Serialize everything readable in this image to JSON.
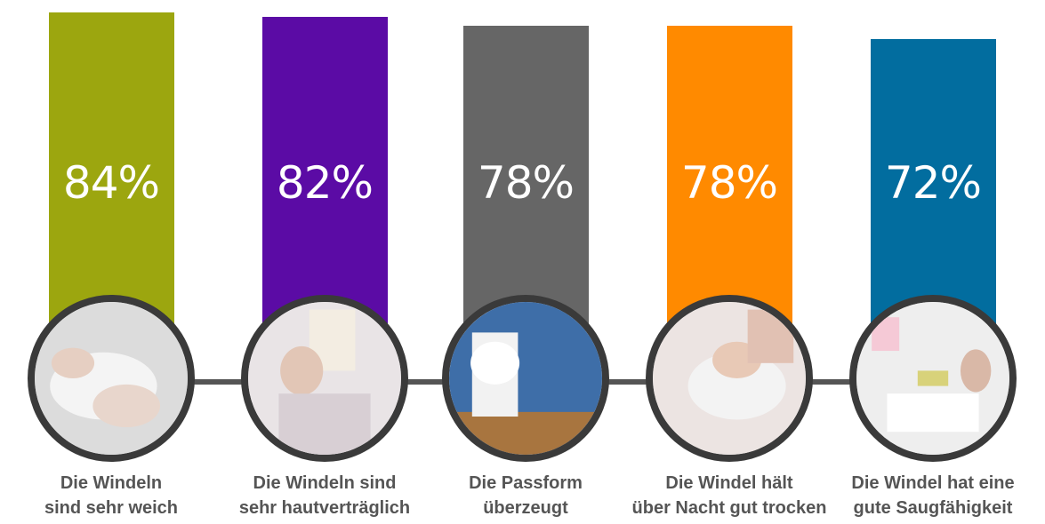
{
  "chart_data": {
    "type": "bar",
    "title": "",
    "xlabel": "",
    "ylabel": "",
    "ylim": [
      0,
      100
    ],
    "categories": [
      [
        "Die Windeln",
        "sind sehr weich"
      ],
      [
        "Die Windeln sind",
        "sehr hautverträglich"
      ],
      [
        "Die Passform",
        "überzeugt"
      ],
      [
        "Die Windel hält",
        "über Nacht gut trocken"
      ],
      [
        "Die Windel hat eine",
        "gute Saugfähigkeit"
      ]
    ],
    "values": [
      84,
      82,
      78,
      78,
      72
    ],
    "value_labels": [
      "84%",
      "82%",
      "78%",
      "78%",
      "72%"
    ],
    "colors": [
      "#9ca60f",
      "#5b0ba5",
      "#666666",
      "#ff8a00",
      "#026d9f"
    ],
    "photo_icons": [
      "baby-diaper-photo",
      "mother-baby-photo",
      "toddler-diaper-photo",
      "sleeping-baby-photo",
      "changing-table-photo"
    ]
  }
}
